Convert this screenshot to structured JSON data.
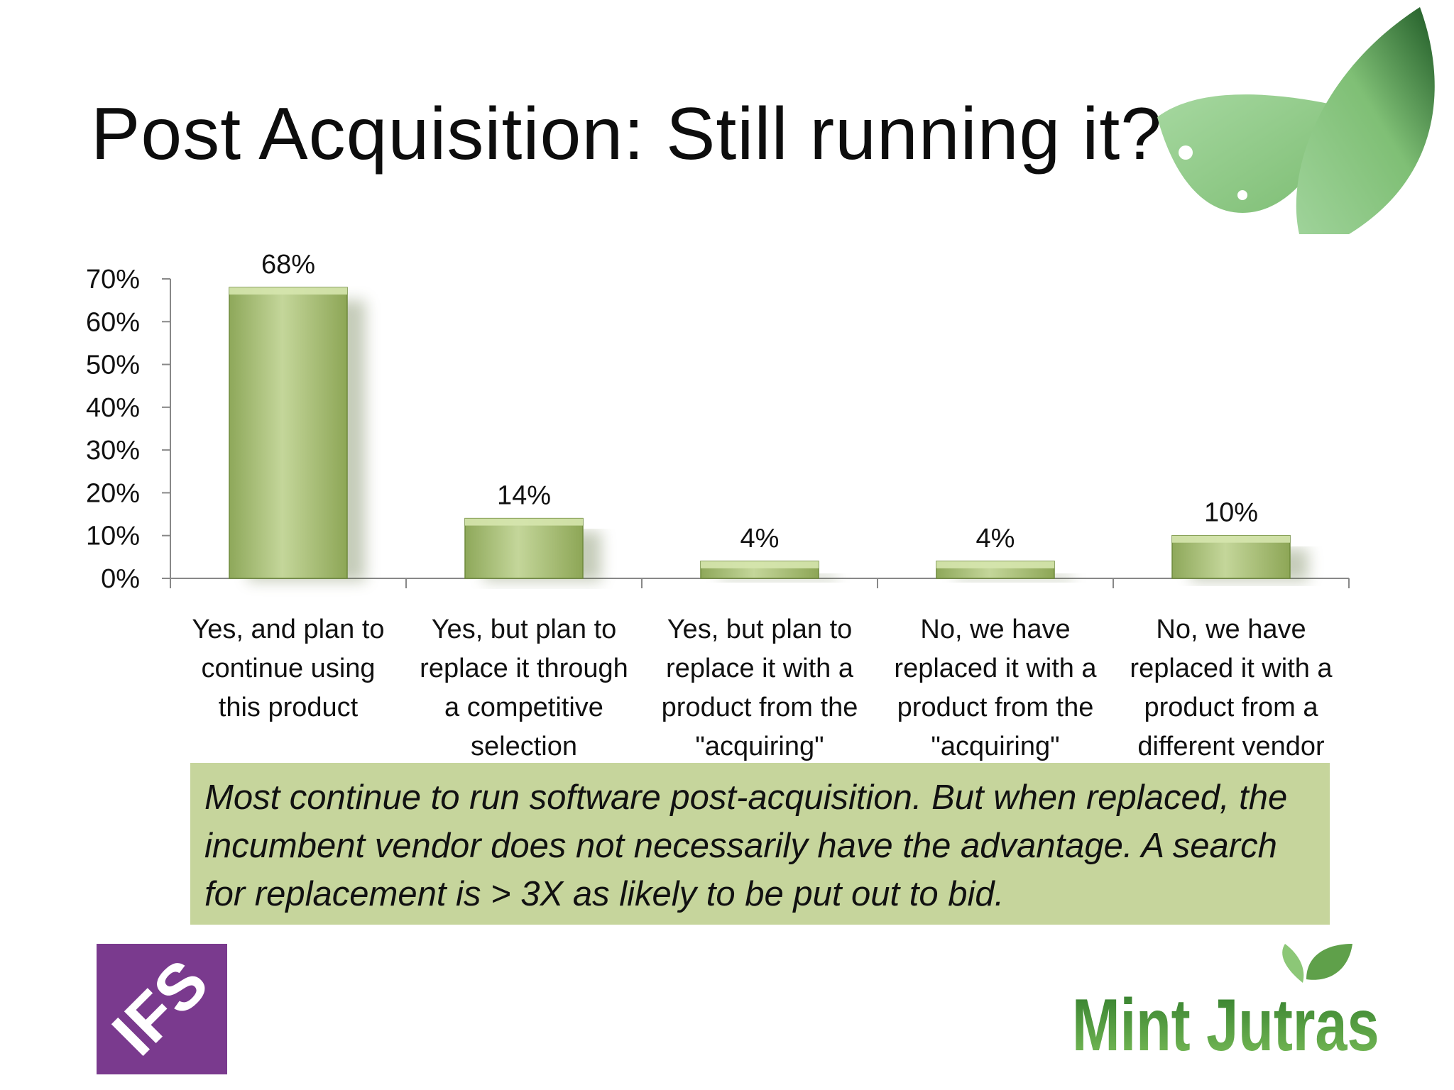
{
  "slide": {
    "title": "Post Acquisition: Still running it?",
    "callout": "Most continue to run software post-acquisition. But when replaced, the incumbent vendor does not necessarily have the advantage. A search for replacement is > 3X as likely to be put out to bid."
  },
  "logos": {
    "left": "IFS",
    "right": "Mint Jutras"
  },
  "colors": {
    "bar": "#a3b96e",
    "bar_highlight": "#cfdfa5",
    "bar_shadow": "#6f8a3c",
    "callout_bg": "#c6d59c",
    "ifs_purple": "#7a3a8e",
    "leaf_green": "#8fc886"
  },
  "chart_data": {
    "type": "bar",
    "categories": [
      [
        "Yes, and plan to",
        "continue using",
        "this product"
      ],
      [
        "Yes, but plan to",
        "replace it through",
        "a competitive",
        "selection"
      ],
      [
        "Yes, but  plan to",
        "replace it with a",
        "product from the",
        "\"acquiring\""
      ],
      [
        "No, we have",
        "replaced it with a",
        "product from the",
        "\"acquiring\""
      ],
      [
        "No, we have",
        "replaced it with a",
        "product from a",
        "different vendor"
      ]
    ],
    "values": [
      68,
      14,
      4,
      4,
      10
    ],
    "data_labels": [
      "68%",
      "14%",
      "4%",
      "4%",
      "10%"
    ],
    "y_ticks": [
      "0%",
      "10%",
      "20%",
      "30%",
      "40%",
      "50%",
      "60%",
      "70%"
    ],
    "ylim": [
      0,
      70
    ],
    "title": "",
    "xlabel": "",
    "ylabel": "",
    "grid": false,
    "legend": "none"
  }
}
